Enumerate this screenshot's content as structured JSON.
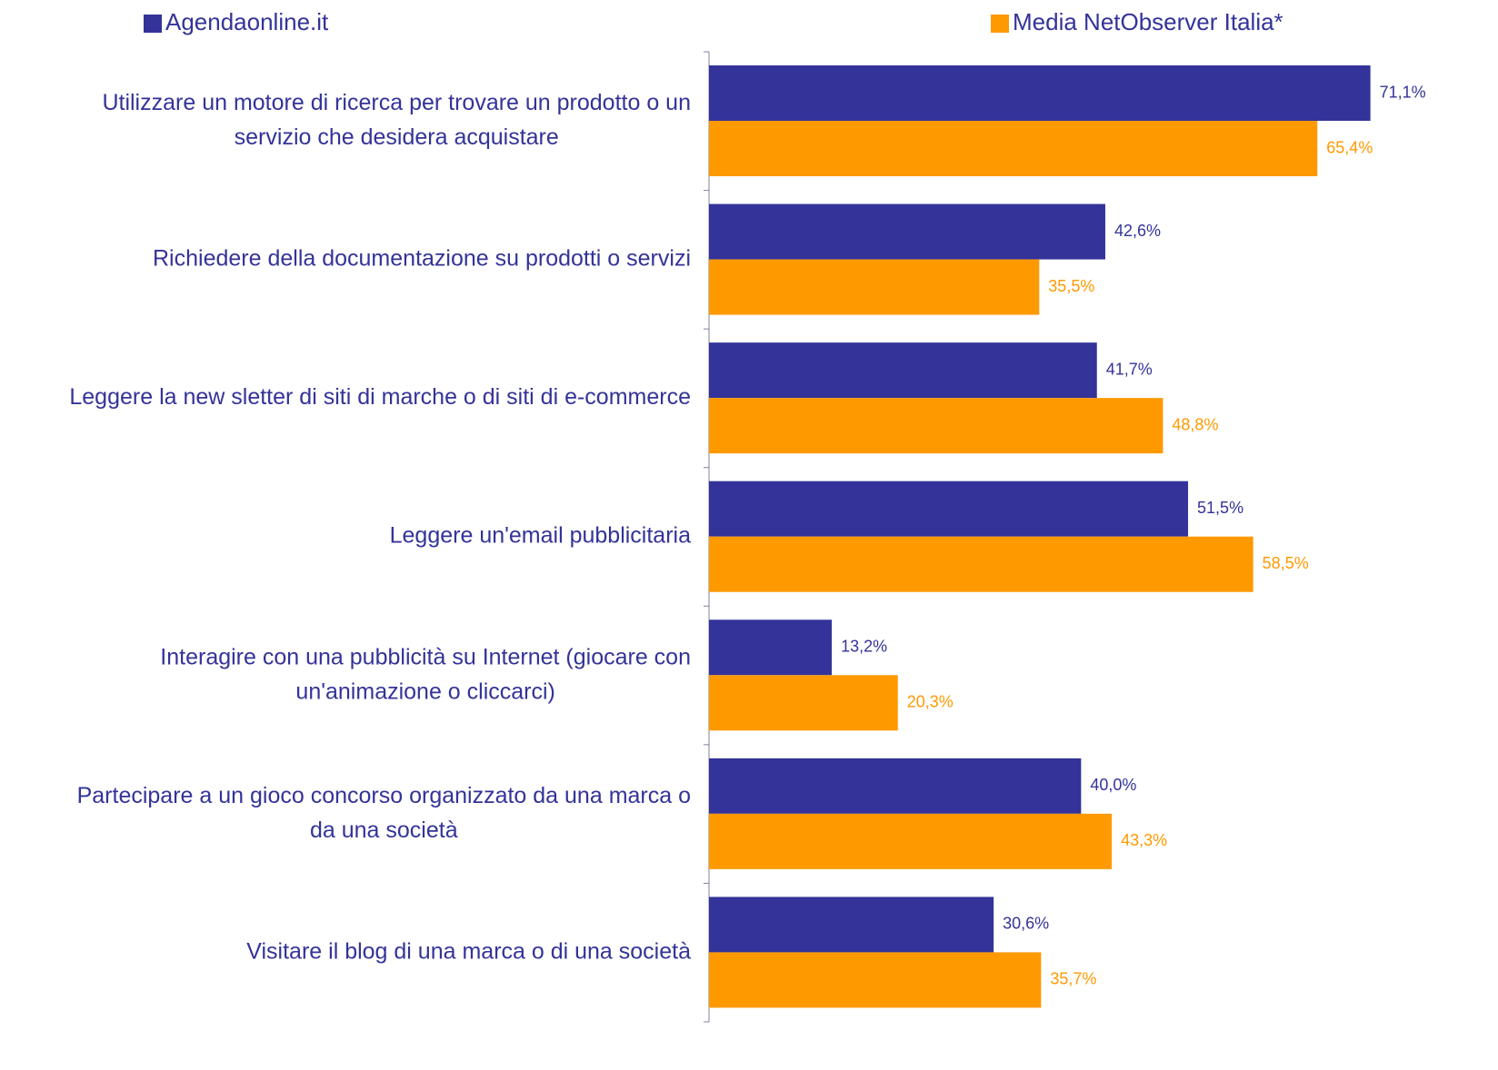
{
  "chart_data": {
    "type": "hbar",
    "categories": [
      "Utilizzare un motore di ricerca per  trovare un prodotto o un\nservizio che desidera acquistare",
      "Richiedere della documentazione su prodotti o servizi",
      "Leggere la new sletter di siti di marche o di siti di e-commerce",
      "Leggere un'email pubblicitaria",
      "Interagire con una pubblicità su Internet (giocare con\nun'animazione o cliccarci)",
      "Partecipare a un gioco concorso organizzato da una marca o\nda una società",
      "Visitare il blog di una marca o di una società"
    ],
    "series": [
      {
        "name": "Agendaonline.it",
        "color": "#333399",
        "values": [
          71.1,
          42.6,
          41.7,
          51.5,
          13.2,
          40.0,
          30.6
        ],
        "value_labels": [
          "71,1%",
          "42,6%",
          "41,7%",
          "51,5%",
          "13,2%",
          "40,0%",
          "30,6%"
        ]
      },
      {
        "name": "Media NetObserver Italia*",
        "color": "#FF9900",
        "values": [
          65.4,
          35.5,
          48.8,
          58.5,
          20.3,
          43.3,
          35.7
        ],
        "value_labels": [
          "65,4%",
          "35,5%",
          "48,8%",
          "58,5%",
          "20,3%",
          "43,3%",
          "35,7%"
        ]
      }
    ],
    "xlim": [
      0,
      77
    ]
  }
}
